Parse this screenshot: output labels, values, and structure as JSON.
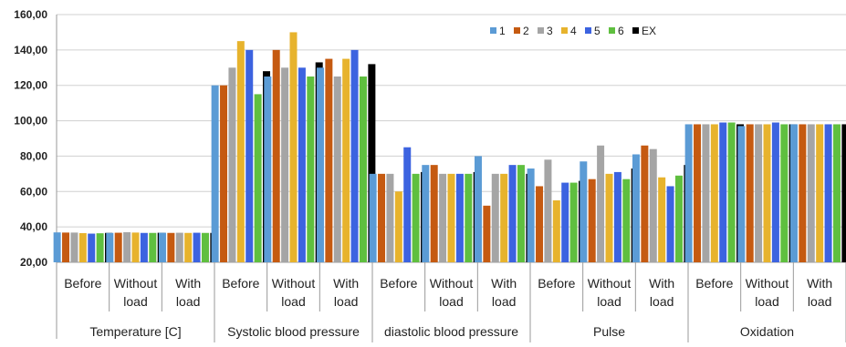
{
  "chart_data": {
    "type": "bar",
    "title": "",
    "xlabel": "",
    "ylabel": "",
    "ylim": [
      20,
      160
    ],
    "yticks": [
      "20,00",
      "40,00",
      "60,00",
      "80,00",
      "100,00",
      "120,00",
      "140,00",
      "160,00"
    ],
    "grid": true,
    "legend_position": "top-right",
    "colors": [
      "#5b9bd5",
      "#c55a11",
      "#a5a5a5",
      "#e7b32d",
      "#3c63e0",
      "#5fbf3f",
      "#000000"
    ],
    "groups": [
      {
        "label": "Temperature [C]",
        "categories": [
          [
            "Before"
          ],
          [
            "Without",
            "load"
          ],
          [
            "With",
            "load"
          ]
        ]
      },
      {
        "label": "Systolic blood pressure",
        "categories": [
          [
            "Before"
          ],
          [
            "Without",
            "load"
          ],
          [
            "With",
            "load"
          ]
        ]
      },
      {
        "label": "diastolic blood pressure",
        "categories": [
          [
            "Before"
          ],
          [
            "Without",
            "load"
          ],
          [
            "With",
            "load"
          ]
        ]
      },
      {
        "label": "Pulse",
        "categories": [
          [
            "Before"
          ],
          [
            "Without",
            "load"
          ],
          [
            "With",
            "load"
          ]
        ]
      },
      {
        "label": "Oxidation",
        "categories": [
          [
            "Before"
          ],
          [
            "Without",
            "load"
          ],
          [
            "With",
            "load"
          ]
        ]
      }
    ],
    "series": [
      {
        "name": "1",
        "values": [
          36.9,
          36.6,
          36.7,
          120,
          125,
          130,
          70,
          75,
          80,
          73,
          77,
          81,
          98,
          97,
          98
        ]
      },
      {
        "name": "2",
        "values": [
          36.8,
          36.7,
          36.6,
          120,
          140,
          135,
          70,
          75,
          52,
          63,
          67,
          86,
          98,
          98,
          98
        ]
      },
      {
        "name": "3",
        "values": [
          36.8,
          37.0,
          36.7,
          130,
          130,
          125,
          70,
          70,
          70,
          78,
          86,
          84,
          98,
          98,
          98
        ]
      },
      {
        "name": "4",
        "values": [
          36.5,
          36.8,
          36.6,
          145,
          150,
          135,
          60,
          70,
          70,
          55,
          70,
          68,
          98,
          98,
          98
        ]
      },
      {
        "name": "5",
        "values": [
          36.2,
          36.6,
          36.7,
          140,
          130,
          140,
          85,
          70,
          75,
          65,
          71,
          63,
          99,
          99,
          98
        ]
      },
      {
        "name": "6",
        "values": [
          36.4,
          36.6,
          36.6,
          115,
          125,
          125,
          70,
          70,
          75,
          65,
          67,
          69,
          99,
          98,
          98
        ]
      },
      {
        "name": "EX",
        "values": [
          36.6,
          36.7,
          36.6,
          128,
          133,
          132,
          71,
          71,
          70,
          66,
          73,
          75,
          98,
          98,
          98
        ]
      }
    ]
  }
}
